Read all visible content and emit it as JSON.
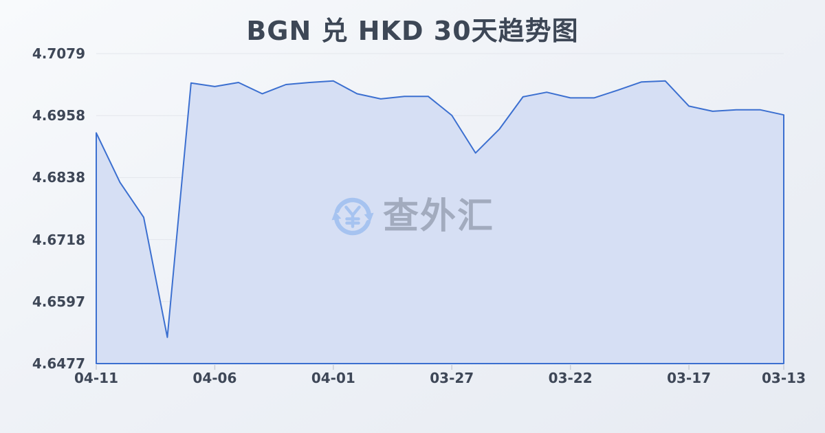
{
  "title": "BGN 兑 HKD 30天趋势图",
  "watermark": {
    "icon": "currency-exchange-icon",
    "text": "查外汇"
  },
  "colors": {
    "line": "#3b6fd0",
    "fill": "#d6dff4",
    "grid": "#e3e6ec",
    "tick": "#c8cdd6",
    "text": "#3e4757",
    "watermark_blue": "#a6c3f0",
    "watermark_gray": "#99a2b5"
  },
  "chart_data": {
    "type": "area",
    "title": "BGN 兑 HKD 30天趋势图",
    "series_name": "BGN/HKD",
    "x": [
      "04-11",
      "04-10",
      "04-09",
      "04-08",
      "04-07",
      "04-06",
      "04-05",
      "04-04",
      "04-03",
      "04-02",
      "04-01",
      "03-31",
      "03-30",
      "03-29",
      "03-28",
      "03-27",
      "03-26",
      "03-25",
      "03-24",
      "03-23",
      "03-22",
      "03-21",
      "03-20",
      "03-19",
      "03-18",
      "03-17",
      "03-16",
      "03-15",
      "03-14",
      "03-13"
    ],
    "values": [
      4.6925,
      4.6829,
      4.6761,
      4.6528,
      4.7022,
      4.7015,
      4.7023,
      4.7001,
      4.7019,
      4.7023,
      4.7026,
      4.7001,
      4.6991,
      4.6996,
      4.6996,
      4.6959,
      4.6886,
      4.6932,
      4.6995,
      4.7004,
      4.6993,
      4.6993,
      4.7008,
      4.7024,
      4.7026,
      4.6977,
      4.6967,
      4.697,
      4.697,
      4.696
    ],
    "x_tick_labels": [
      "04-11",
      "04-06",
      "04-01",
      "03-27",
      "03-22",
      "03-17",
      "03-13"
    ],
    "y_tick_labels": [
      "4.7079",
      "4.6958",
      "4.6838",
      "4.6718",
      "4.6597",
      "4.6477"
    ],
    "ylim": [
      4.6477,
      4.7079
    ],
    "xlabel": "",
    "ylabel": "",
    "grid": true,
    "legend": "none"
  }
}
